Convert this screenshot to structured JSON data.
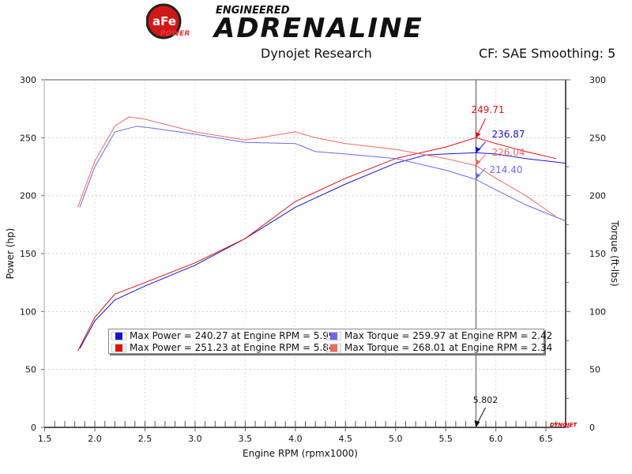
{
  "logo": {
    "brand": "aFe POWER",
    "line1": "ENGINEERED",
    "line2": "ADRENALINE"
  },
  "header": {
    "center": "Dynojet Research",
    "right": "CF: SAE Smoothing: 5"
  },
  "colors": {
    "power_run1": "#1515d0",
    "power_run2": "#e01010",
    "torque_run1": "#6a6ae8",
    "torque_run2": "#ee6868"
  },
  "chart_data": {
    "type": "line",
    "xlabel": "Engine RPM (rpmx1000)",
    "ylabel": "Power (hp)",
    "y2label": "Torque (ft-lbs)",
    "xlim": [
      1.5,
      6.7
    ],
    "ylim": [
      0,
      300
    ],
    "y2lim": [
      0,
      300
    ],
    "xticks": [
      "1.5",
      "2.0",
      "2.5",
      "3.0",
      "3.5",
      "4.0",
      "4.5",
      "5.0",
      "5.5",
      "6.0",
      "6.5"
    ],
    "yticks": [
      "0",
      "50",
      "100",
      "150",
      "200",
      "250",
      "300"
    ],
    "grid": true,
    "cursor": {
      "x": 5.802,
      "label": "5.802"
    },
    "cursor_values": [
      {
        "label": "249.71",
        "value": 249.71,
        "color": "#e01010"
      },
      {
        "label": "236.87",
        "value": 236.87,
        "color": "#1515d0"
      },
      {
        "label": "226.04",
        "value": 226.04,
        "color": "#ee6868"
      },
      {
        "label": "214.40",
        "value": 214.4,
        "color": "#6a6ae8"
      }
    ],
    "series": [
      {
        "key": "power_run1",
        "x": [
          1.85,
          2.0,
          2.2,
          2.5,
          3.0,
          3.5,
          4.0,
          4.5,
          5.0,
          5.3,
          5.5,
          5.8,
          6.0,
          6.3,
          6.7
        ],
        "y": [
          68,
          92,
          110,
          122,
          140,
          163,
          190,
          210,
          228,
          235,
          236,
          237,
          236,
          232,
          228
        ]
      },
      {
        "key": "power_run2",
        "x": [
          1.83,
          2.0,
          2.2,
          2.5,
          3.0,
          3.5,
          4.0,
          4.5,
          5.0,
          5.5,
          5.8,
          6.0,
          6.3,
          6.6
        ],
        "y": [
          66,
          95,
          115,
          125,
          142,
          163,
          195,
          215,
          232,
          242,
          250,
          245,
          238,
          232
        ]
      },
      {
        "key": "torque_run1",
        "x": [
          1.85,
          2.0,
          2.2,
          2.42,
          2.6,
          3.0,
          3.5,
          4.0,
          4.2,
          4.5,
          5.0,
          5.5,
          5.8,
          6.0,
          6.3,
          6.7
        ],
        "y": [
          190,
          225,
          255,
          260,
          258,
          253,
          246,
          245,
          238,
          236,
          232,
          222,
          214,
          205,
          192,
          178
        ]
      },
      {
        "key": "torque_run2",
        "x": [
          1.83,
          2.0,
          2.2,
          2.34,
          2.5,
          3.0,
          3.5,
          4.0,
          4.2,
          4.5,
          5.0,
          5.5,
          5.8,
          6.0,
          6.3,
          6.6
        ],
        "y": [
          190,
          230,
          260,
          268,
          266,
          255,
          248,
          255,
          250,
          245,
          240,
          232,
          226,
          215,
          200,
          182
        ]
      }
    ],
    "legend": [
      {
        "label": "Max Power = 240.27 at Engine RPM = 5.99",
        "color": "#1515d0"
      },
      {
        "label": "Max Torque = 259.97 at Engine RPM = 2.42",
        "color": "#6a6ae8"
      },
      {
        "label": "Max Power = 251.23 at Engine RPM = 5.84",
        "color": "#e01010"
      },
      {
        "label": "Max Torque = 268.01 at Engine RPM = 2.34",
        "color": "#ee6868"
      }
    ],
    "watermark": "DYNOJET"
  }
}
